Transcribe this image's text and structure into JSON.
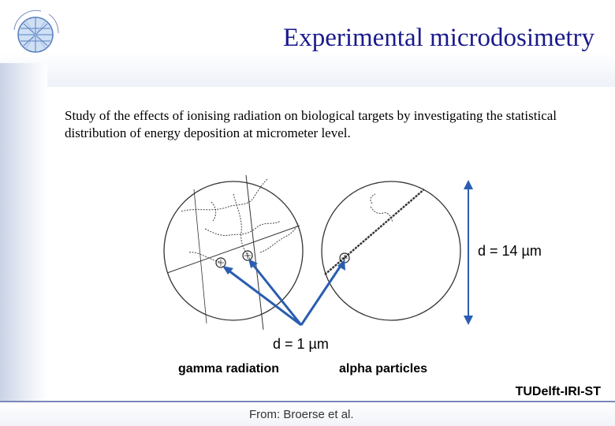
{
  "slide": {
    "title": "Experimental microdosimetry",
    "body": "Study of the effects of ionising radiation on biological targets by investigating the statistical distribution of energy deposition at micrometer level.",
    "labels": {
      "d_large": "d = 14 µm",
      "d_small": "d = 1 µm",
      "gamma": "gamma radiation",
      "alpha": "alpha particles",
      "credit": "TUDelft-IRI-ST",
      "source": "From: Broerse et al."
    },
    "colors": {
      "title": "#1a1a8c",
      "arrow": "#2a5db0",
      "footer_line": "#7a86b8"
    },
    "logo_icon": "globe-logo-icon"
  }
}
